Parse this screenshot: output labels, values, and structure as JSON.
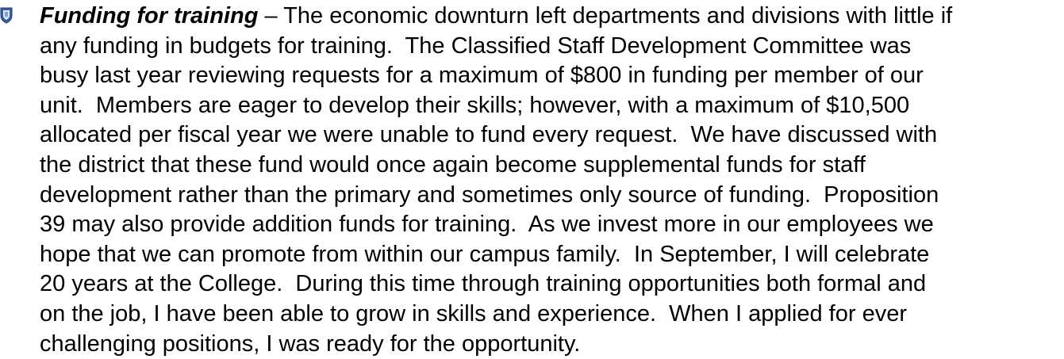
{
  "item": {
    "heading": "Funding for training",
    "lines": [
      " – The economic downturn left departments and divisions with little if",
      "any funding in budgets for training.  The Classified Staff Development Committee was",
      "busy last year reviewing requests for a maximum of $800 in funding per member of our",
      "unit.  Members are eager to develop their skills; however, with a maximum of $10,500",
      "allocated per fiscal year we were unable to fund every request.  We have discussed with",
      "the district that these fund would once again become supplemental funds for staff",
      "development rather than the primary and sometimes only source of funding.  Proposition",
      "39 may also provide addition funds for training.  As we invest more in our employees we",
      "hope that we can promote from within our campus family.  In September, I will celebrate",
      "20 years at the College.  During this time through training opportunities both formal and",
      "on the job, I have been able to grow in skills and experience.  When I applied for ever",
      "challenging positions, I was ready for the opportunity."
    ]
  }
}
